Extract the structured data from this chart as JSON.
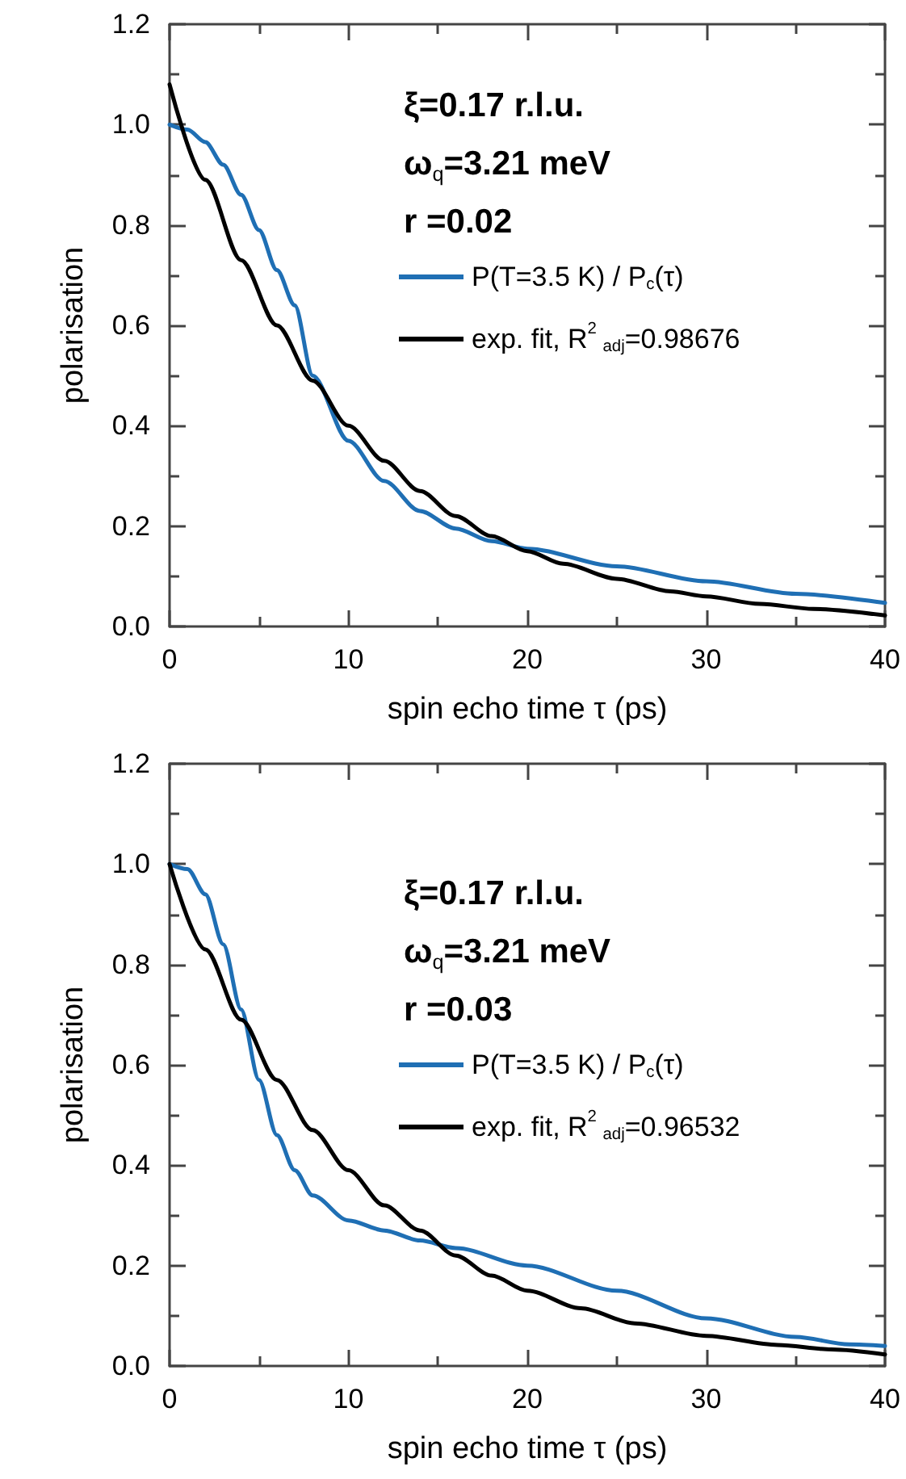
{
  "chart_data": [
    {
      "type": "line",
      "xlabel": "spin echo time τ (ps)",
      "ylabel": "polarisation",
      "annotations": [
        "ξ=0.17 r.l.u.",
        "ω$_{q}$=3.21 meV",
        "r =0.02"
      ],
      "series": [
        {
          "name": "P(T=3.5 K) / P$_{c}$(τ)",
          "color": "#1f6fb4",
          "x": [
            0,
            1,
            2,
            3,
            4,
            5,
            6,
            7,
            8,
            10,
            12,
            14,
            16,
            18,
            20,
            25,
            30,
            35,
            40
          ],
          "values": [
            1.0,
            0.99,
            0.965,
            0.92,
            0.86,
            0.79,
            0.71,
            0.64,
            0.5,
            0.37,
            0.29,
            0.23,
            0.195,
            0.17,
            0.155,
            0.12,
            0.09,
            0.065,
            0.047
          ]
        },
        {
          "name": "exp. fit, R$^{2}$$_{adj}$=0.98676",
          "color": "#000000",
          "x": [
            0,
            2,
            4,
            6,
            8,
            10,
            12,
            14,
            16,
            18,
            20,
            22,
            25,
            28,
            30,
            33,
            36,
            40
          ],
          "values": [
            1.08,
            0.89,
            0.73,
            0.6,
            0.49,
            0.4,
            0.33,
            0.27,
            0.22,
            0.18,
            0.15,
            0.125,
            0.095,
            0.07,
            0.06,
            0.045,
            0.035,
            0.022
          ]
        }
      ],
      "xlim": [
        0,
        40
      ],
      "xticks": [
        0,
        10,
        20,
        30,
        40
      ],
      "ylim": [
        0,
        1.2
      ],
      "yticks": [
        {
          "value": 0,
          "label": "0.0"
        },
        {
          "value": 0.2,
          "label": "0.2"
        },
        {
          "value": 0.4,
          "label": "0.4"
        },
        {
          "value": 0.6,
          "label": "0.6"
        },
        {
          "value": 0.8,
          "label": "0.8"
        },
        {
          "value": 1.0,
          "label": "1.0"
        },
        {
          "value": 1.2,
          "label": "1.2"
        }
      ],
      "grid": false,
      "legend": "top right",
      "marker": "none",
      "line_style": "solid"
    },
    {
      "type": "line",
      "xlabel": "spin echo time τ (ps)",
      "ylabel": "polarisation",
      "annotations": [
        "ξ=0.17 r.l.u.",
        "ω$_{q}$=3.21 meV",
        "r =0.03"
      ],
      "legend": "right",
      "series": [
        {
          "name": "P(T=3.5 K) / P$_{c}$(τ)",
          "color": "#1f6fb4",
          "x": [
            0,
            1,
            2,
            3,
            4,
            5,
            6,
            7,
            8,
            10,
            12,
            14,
            16,
            20,
            25,
            30,
            35,
            38,
            40
          ],
          "values": [
            1.0,
            0.99,
            0.94,
            0.84,
            0.71,
            0.57,
            0.46,
            0.39,
            0.34,
            0.29,
            0.27,
            0.25,
            0.235,
            0.2,
            0.15,
            0.095,
            0.058,
            0.043,
            0.04
          ]
        },
        {
          "name": "exp. fit, R$^{2}$$_{adj}$=0.96532",
          "color": "#000000",
          "x": [
            0,
            2,
            4,
            6,
            8,
            10,
            12,
            14,
            16,
            18,
            20,
            23,
            26,
            30,
            34,
            37,
            40
          ],
          "values": [
            1.0,
            0.83,
            0.69,
            0.57,
            0.47,
            0.39,
            0.32,
            0.27,
            0.22,
            0.18,
            0.15,
            0.115,
            0.085,
            0.06,
            0.042,
            0.033,
            0.023
          ]
        }
      ],
      "xlim": [
        0,
        40
      ],
      "xticks": [
        0,
        10,
        20,
        30,
        40
      ],
      "ylim": [
        0,
        1.2
      ],
      "yticks": [
        {
          "value": 0,
          "label": "0.0"
        },
        {
          "value": 0.2,
          "label": "0.2"
        },
        {
          "value": 0.4,
          "label": "0.4"
        },
        {
          "value": 0.6,
          "label": "0.6"
        },
        {
          "value": 0.8,
          "label": "0.8"
        },
        {
          "value": 1.0,
          "label": "1.0"
        },
        {
          "value": 1.2,
          "label": "1.2"
        }
      ],
      "grid": false,
      "marker": "none",
      "line_style": "solid"
    }
  ]
}
